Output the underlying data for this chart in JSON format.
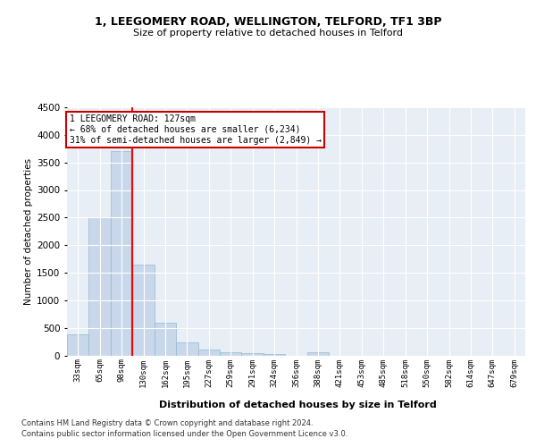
{
  "title": "1, LEEGOMERY ROAD, WELLINGTON, TELFORD, TF1 3BP",
  "subtitle": "Size of property relative to detached houses in Telford",
  "xlabel": "Distribution of detached houses by size in Telford",
  "ylabel": "Number of detached properties",
  "bar_color": "#c8d8ea",
  "bar_edge_color": "#92b8d0",
  "background_color": "#e8eef5",
  "grid_color": "#ffffff",
  "categories": [
    "33sqm",
    "65sqm",
    "98sqm",
    "130sqm",
    "162sqm",
    "195sqm",
    "227sqm",
    "259sqm",
    "291sqm",
    "324sqm",
    "356sqm",
    "388sqm",
    "421sqm",
    "453sqm",
    "485sqm",
    "518sqm",
    "550sqm",
    "582sqm",
    "614sqm",
    "647sqm",
    "679sqm"
  ],
  "values": [
    380,
    2500,
    3700,
    1640,
    600,
    230,
    105,
    55,
    40,
    30,
    0,
    60,
    0,
    0,
    0,
    0,
    0,
    0,
    0,
    0,
    0
  ],
  "red_line_index": 3,
  "annotation_line1": "1 LEEGOMERY ROAD: 127sqm",
  "annotation_line2": "← 68% of detached houses are smaller (6,234)",
  "annotation_line3": "31% of semi-detached houses are larger (2,849) →",
  "annotation_box_color": "#cc0000",
  "ylim": [
    0,
    4500
  ],
  "yticks": [
    0,
    500,
    1000,
    1500,
    2000,
    2500,
    3000,
    3500,
    4000,
    4500
  ],
  "footer_line1": "Contains HM Land Registry data © Crown copyright and database right 2024.",
  "footer_line2": "Contains public sector information licensed under the Open Government Licence v3.0."
}
